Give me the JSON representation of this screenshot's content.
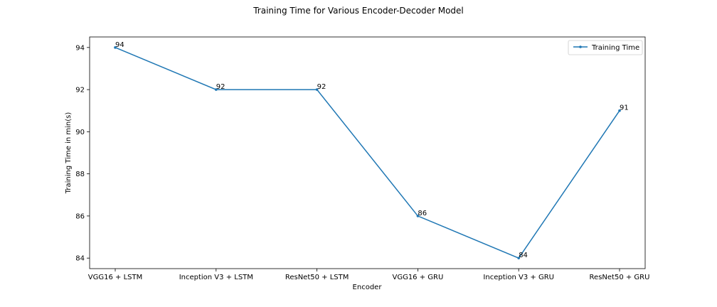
{
  "chart_data": {
    "type": "line",
    "title": "Training Time for Various Encoder-Decoder Model",
    "xlabel": "Encoder",
    "ylabel": "Training Time in min(s)",
    "categories": [
      "VGG16 + LSTM",
      "Inception V3 + LSTM",
      "ResNet50 + LSTM",
      "VGG16 + GRU",
      "Inception V3 + GRU",
      "ResNet50 + GRU"
    ],
    "series": [
      {
        "name": "Training Time",
        "values": [
          94,
          92,
          92,
          86,
          84,
          91
        ],
        "color": "#1f77b4",
        "marker": "point"
      }
    ],
    "data_labels": [
      "94",
      "92",
      "92",
      "86",
      "84",
      "91"
    ],
    "ylim": [
      83.5,
      94.5
    ],
    "yticks": [
      84,
      86,
      88,
      90,
      92,
      94
    ],
    "grid": false,
    "legend_position": "top-right"
  }
}
